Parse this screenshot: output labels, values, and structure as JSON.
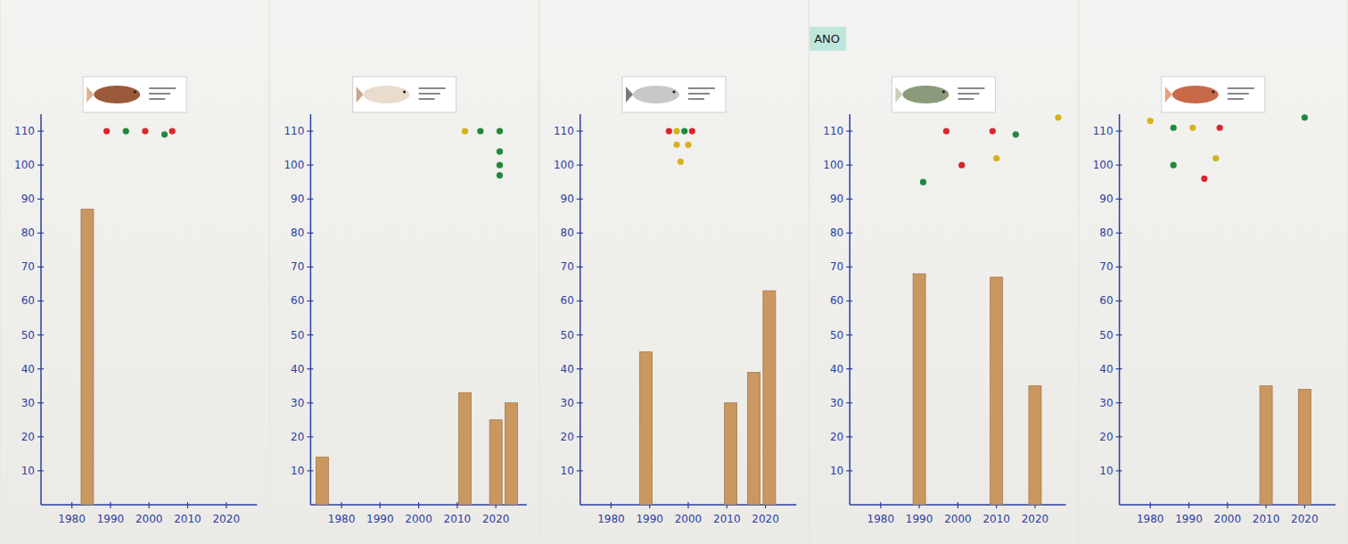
{
  "chart_data": [
    {
      "type": "bar",
      "xlim": [
        1972,
        2028
      ],
      "xticks": [
        1980,
        1990,
        2000,
        2010,
        2020
      ],
      "ylim": [
        0,
        115
      ],
      "yticks": [
        10,
        20,
        30,
        40,
        50,
        60,
        70,
        80,
        90,
        100,
        110
      ],
      "series": [
        {
          "type": "bar",
          "color": "#c9975f",
          "x": [
            1984
          ],
          "values": [
            87
          ]
        },
        {
          "type": "scatter",
          "marker": "circle",
          "x": [
            1989,
            1994,
            1999,
            2004,
            2006
          ],
          "values": [
            110,
            110,
            110,
            109,
            110
          ],
          "colors": [
            "#d9262b",
            "#1e8a3c",
            "#d9262b",
            "#1e8a3c",
            "#d9262b"
          ]
        }
      ]
    },
    {
      "type": "bar",
      "xlim": [
        1972,
        2028
      ],
      "xticks": [
        1980,
        1990,
        2000,
        2010,
        2020
      ],
      "ylim": [
        0,
        115
      ],
      "yticks": [
        10,
        20,
        30,
        40,
        50,
        60,
        70,
        80,
        90,
        100,
        110
      ],
      "series": [
        {
          "type": "bar",
          "color": "#c9975f",
          "x": [
            1975,
            2012,
            2020,
            2024
          ],
          "values": [
            14,
            33,
            25,
            30
          ]
        },
        {
          "type": "scatter",
          "marker": "circle",
          "x": [
            2012,
            2016,
            2021,
            2021,
            2021,
            2021
          ],
          "values": [
            110,
            110,
            110,
            104,
            100,
            97
          ],
          "colors": [
            "#d4b21c",
            "#1e8a3c",
            "#1e8a3c",
            "#1e8a3c",
            "#1e8a3c",
            "#1e8a3c"
          ]
        }
      ]
    },
    {
      "type": "bar",
      "xlim": [
        1972,
        2028
      ],
      "xticks": [
        1980,
        1990,
        2000,
        2010,
        2020
      ],
      "ylim": [
        0,
        115
      ],
      "yticks": [
        10,
        20,
        30,
        40,
        50,
        60,
        70,
        80,
        90,
        100,
        110
      ],
      "series": [
        {
          "type": "bar",
          "color": "#c9975f",
          "x": [
            1989,
            2011,
            2017,
            2021
          ],
          "values": [
            45,
            30,
            39,
            63
          ]
        },
        {
          "type": "scatter",
          "marker": "circle",
          "x": [
            1995,
            1997,
            1999,
            2001,
            1997,
            2000,
            1998
          ],
          "values": [
            110,
            110,
            110,
            110,
            106,
            106,
            101
          ],
          "colors": [
            "#d9262b",
            "#d4b21c",
            "#1e8a3c",
            "#d9262b",
            "#d4b21c",
            "#d4b21c",
            "#d4b21c"
          ]
        }
      ]
    },
    {
      "type": "bar",
      "xlim": [
        1972,
        2028
      ],
      "xticks": [
        1980,
        1990,
        2000,
        2010,
        2020
      ],
      "ylim": [
        0,
        115
      ],
      "yticks": [
        10,
        20,
        30,
        40,
        50,
        60,
        70,
        80,
        90,
        100,
        110
      ],
      "annotations": [
        "ANO"
      ],
      "series": [
        {
          "type": "bar",
          "color": "#c9975f",
          "x": [
            1990,
            2010,
            2020
          ],
          "values": [
            68,
            67,
            35
          ]
        },
        {
          "type": "scatter",
          "marker": "circle",
          "x": [
            1997,
            2001,
            1991,
            2009,
            2010,
            2015,
            2026
          ],
          "values": [
            110,
            100,
            95,
            110,
            102,
            109,
            114
          ],
          "colors": [
            "#d9262b",
            "#d9262b",
            "#1e8a3c",
            "#d9262b",
            "#d4b21c",
            "#1e8a3c",
            "#d4b21c"
          ]
        }
      ]
    },
    {
      "type": "bar",
      "xlim": [
        1972,
        2028
      ],
      "xticks": [
        1980,
        1990,
        2000,
        2010,
        2020
      ],
      "ylim": [
        0,
        115
      ],
      "yticks": [
        10,
        20,
        30,
        40,
        50,
        60,
        70,
        80,
        90,
        100,
        110
      ],
      "series": [
        {
          "type": "bar",
          "color": "#c9975f",
          "x": [
            2010,
            2020
          ],
          "values": [
            35,
            34
          ]
        },
        {
          "type": "scatter",
          "marker": "circle",
          "x": [
            1980,
            1986,
            1991,
            1998,
            1986,
            1994,
            1997,
            2020
          ],
          "values": [
            113,
            111,
            111,
            111,
            100,
            96,
            102,
            114
          ],
          "colors": [
            "#d4b21c",
            "#1e8a3c",
            "#d4b21c",
            "#d9262b",
            "#1e8a3c",
            "#d9262b",
            "#d4b21c",
            "#1e8a3c"
          ]
        }
      ]
    }
  ]
}
